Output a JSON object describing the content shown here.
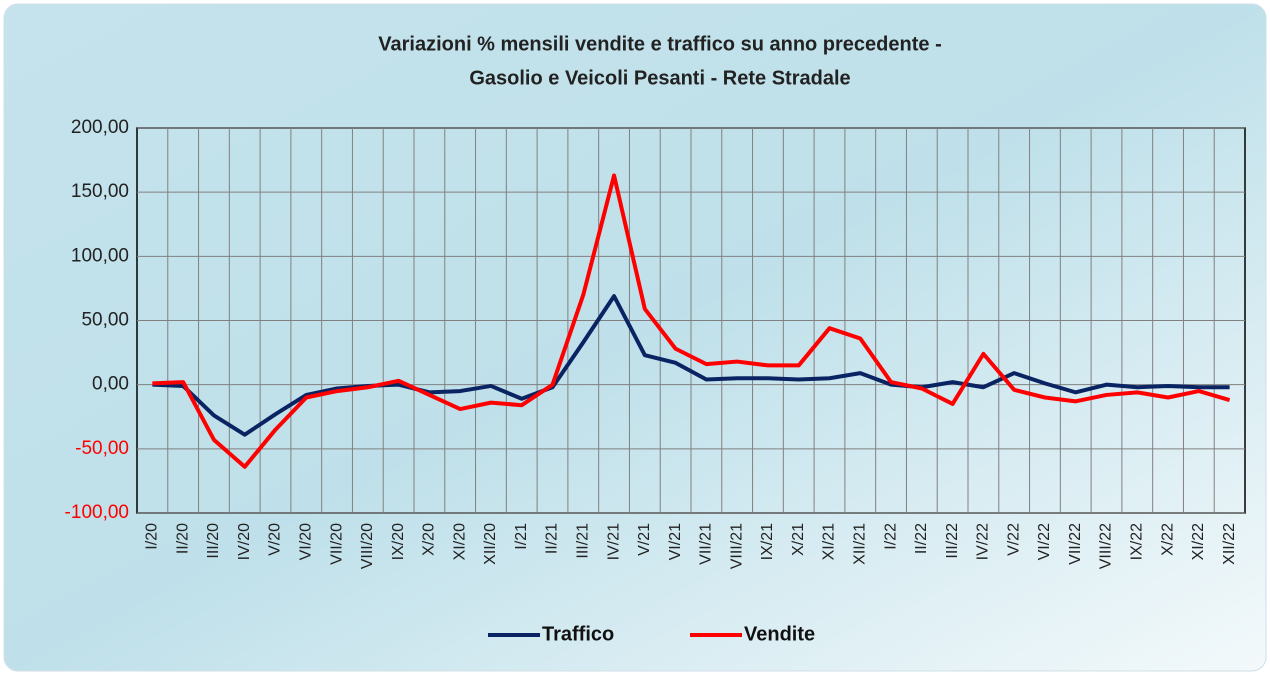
{
  "chart_data": {
    "type": "line",
    "title": [
      "Variazioni % mensili vendite e traffico su anno precedente -",
      "Gasolio e Veicoli Pesanti - Rete Stradale"
    ],
    "categories": [
      "I/20",
      "II/20",
      "III/20",
      "IV/20",
      "V/20",
      "VI/20",
      "VII/20",
      "VIII/20",
      "IX/20",
      "X/20",
      "XI/20",
      "XII/20",
      "I/21",
      "II/21",
      "III/21",
      "IV/21",
      "V/21",
      "VI/21",
      "VII/21",
      "VIII/21",
      "IX/21",
      "X/21",
      "XI/21",
      "XII/21",
      "I/22",
      "II/22",
      "III/22",
      "IV/22",
      "V/22",
      "VI/22",
      "VII/22",
      "VIII/22",
      "IX/22",
      "X/22",
      "XI/22",
      "XII/22"
    ],
    "series": [
      {
        "name": "Traffico",
        "color": "#0a2463",
        "values": [
          0,
          -1,
          -24,
          -39,
          -23,
          -8,
          -3,
          -1,
          0,
          -6,
          -5,
          -1,
          -11,
          -2,
          33,
          69,
          23,
          17,
          4,
          5,
          5,
          4,
          5,
          9,
          0,
          -2,
          2,
          -2,
          9,
          1,
          -6,
          0,
          -2,
          -1,
          -2,
          -2
        ]
      },
      {
        "name": "Vendite",
        "color": "#ff0000",
        "values": [
          1,
          2,
          -43,
          -64,
          -35,
          -10,
          -5,
          -2,
          3,
          -8,
          -19,
          -14,
          -16,
          0,
          70,
          163,
          59,
          28,
          16,
          18,
          15,
          15,
          44,
          36,
          2,
          -3,
          -15,
          24,
          -4,
          -10,
          -13,
          -8,
          -6,
          -10,
          -5,
          -12
        ]
      }
    ],
    "ylim": [
      -100,
      200
    ],
    "yticks": [
      {
        "value": -100,
        "label": "-100,00"
      },
      {
        "value": -50,
        "label": "-50,00"
      },
      {
        "value": 0,
        "label": "0,00"
      },
      {
        "value": 50,
        "label": "50,00"
      },
      {
        "value": 100,
        "label": "100,00"
      },
      {
        "value": 150,
        "label": "150,00"
      },
      {
        "value": 200,
        "label": "200,00"
      }
    ],
    "negative_tick_color": "#ff0000",
    "grid": true,
    "legend": "bottom"
  }
}
